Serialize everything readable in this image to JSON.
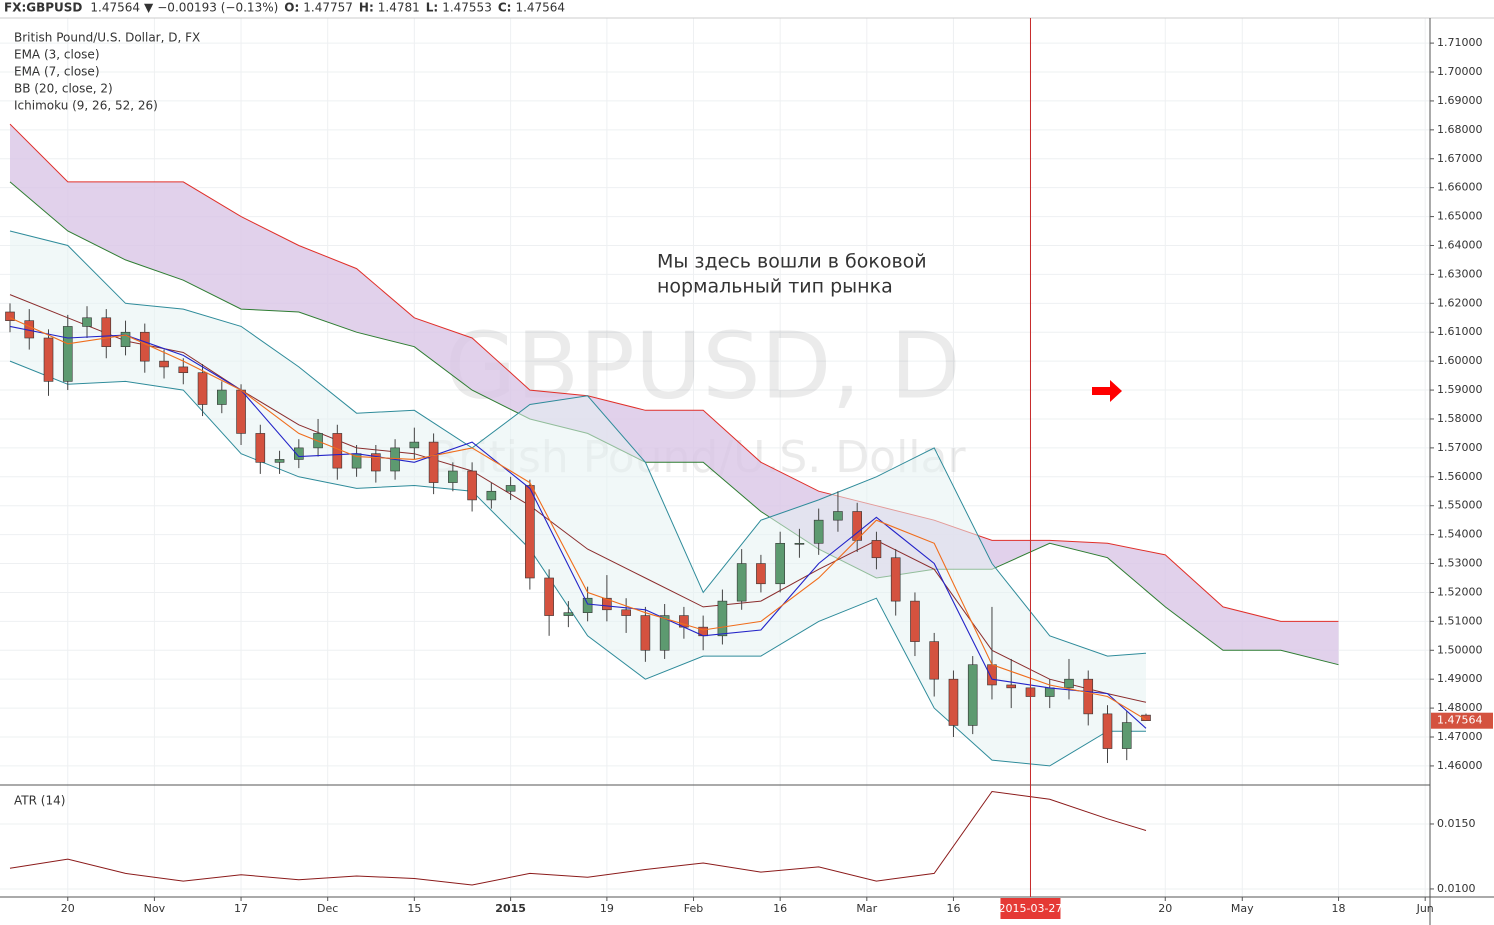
{
  "chart_data": [
    {
      "type": "candlestick",
      "symbol": "FX:GBPUSD",
      "change_arrow": "▼",
      "change": "−0.00193 (−0.13%)",
      "ohlc_labels": [
        "O:",
        "H:",
        "L:",
        "C:"
      ],
      "title": "British Pound/U.S. Dollar, D, FX",
      "watermark": {
        "title": "GBPUSD, D",
        "subtitle": "British Pound/U.S. Dollar"
      },
      "annotation": [
        "Мы здесь вошли в боковой",
        "нормальный тип рынка"
      ],
      "up_color": "#5d9a70",
      "down_color": "#d4523f",
      "x": [
        0,
        2,
        4,
        6,
        8,
        10,
        12,
        14,
        16,
        18,
        20,
        22,
        24,
        26,
        28,
        30,
        32,
        34,
        36,
        38,
        40,
        42,
        44,
        46,
        48,
        50,
        52,
        54,
        56,
        58,
        60,
        62,
        64,
        66,
        68,
        70,
        72,
        74,
        76,
        78,
        80,
        82,
        84,
        86,
        88,
        90,
        92,
        94,
        96,
        98,
        100,
        102,
        104,
        106,
        108,
        110,
        112,
        114,
        116,
        118
      ],
      "open": [
        1.617,
        1.614,
        1.608,
        1.593,
        1.612,
        1.615,
        1.605,
        1.61,
        1.6,
        1.598,
        1.596,
        1.585,
        1.59,
        1.575,
        1.565,
        1.566,
        1.57,
        1.575,
        1.563,
        1.568,
        1.562,
        1.57,
        1.572,
        1.558,
        1.562,
        1.552,
        1.555,
        1.557,
        1.525,
        1.512,
        1.513,
        1.518,
        1.514,
        1.512,
        1.5,
        1.512,
        1.508,
        1.505,
        1.517,
        1.53,
        1.523,
        1.537,
        1.537,
        1.545,
        1.548,
        1.538,
        1.532,
        1.517,
        1.503,
        1.49,
        1.474,
        1.495,
        1.488,
        1.487,
        1.484,
        1.487,
        1.49,
        1.478,
        1.466,
        1.47757
      ],
      "high": [
        1.62,
        1.618,
        1.611,
        1.616,
        1.619,
        1.618,
        1.614,
        1.613,
        1.604,
        1.601,
        1.599,
        1.593,
        1.592,
        1.578,
        1.569,
        1.573,
        1.58,
        1.578,
        1.571,
        1.571,
        1.573,
        1.577,
        1.575,
        1.565,
        1.565,
        1.558,
        1.56,
        1.559,
        1.528,
        1.517,
        1.522,
        1.526,
        1.518,
        1.515,
        1.516,
        1.515,
        1.512,
        1.521,
        1.535,
        1.533,
        1.541,
        1.542,
        1.549,
        1.555,
        1.551,
        1.541,
        1.535,
        1.52,
        1.506,
        1.493,
        1.498,
        1.515,
        1.497,
        1.491,
        1.49,
        1.497,
        1.493,
        1.481,
        1.479,
        1.4781
      ],
      "low": [
        1.61,
        1.604,
        1.588,
        1.59,
        1.608,
        1.601,
        1.602,
        1.596,
        1.594,
        1.592,
        1.581,
        1.582,
        1.571,
        1.561,
        1.561,
        1.563,
        1.567,
        1.559,
        1.56,
        1.558,
        1.559,
        1.566,
        1.554,
        1.555,
        1.548,
        1.549,
        1.552,
        1.521,
        1.505,
        1.508,
        1.51,
        1.51,
        1.506,
        1.496,
        1.497,
        1.504,
        1.5,
        1.502,
        1.514,
        1.52,
        1.52,
        1.532,
        1.533,
        1.541,
        1.534,
        1.528,
        1.512,
        1.498,
        1.484,
        1.47,
        1.471,
        1.483,
        1.48,
        1.479,
        1.48,
        1.483,
        1.474,
        1.461,
        1.462,
        1.47553
      ],
      "close": [
        1.614,
        1.608,
        1.593,
        1.612,
        1.615,
        1.605,
        1.61,
        1.6,
        1.598,
        1.596,
        1.585,
        1.59,
        1.575,
        1.565,
        1.566,
        1.57,
        1.575,
        1.563,
        1.568,
        1.562,
        1.57,
        1.572,
        1.558,
        1.562,
        1.552,
        1.555,
        1.557,
        1.525,
        1.512,
        1.513,
        1.518,
        1.514,
        1.512,
        1.5,
        1.512,
        1.508,
        1.505,
        1.517,
        1.53,
        1.523,
        1.537,
        1.537,
        1.545,
        1.548,
        1.538,
        1.532,
        1.517,
        1.503,
        1.49,
        1.474,
        1.495,
        1.488,
        1.487,
        1.484,
        1.487,
        1.49,
        1.478,
        1.466,
        1.475,
        1.47564
      ],
      "series": [
        {
          "name": "EMA (3, close)",
          "color": "#2323c8",
          "x": [
            0,
            6,
            12,
            18,
            24,
            30,
            36,
            42,
            48,
            54,
            60,
            66,
            72,
            78,
            84,
            90,
            96,
            102,
            108,
            114,
            118
          ],
          "values": [
            1.612,
            1.608,
            1.609,
            1.602,
            1.59,
            1.567,
            1.568,
            1.565,
            1.572,
            1.556,
            1.516,
            1.514,
            1.505,
            1.507,
            1.53,
            1.546,
            1.53,
            1.49,
            1.487,
            1.485,
            1.473
          ]
        },
        {
          "name": "EMA (7, close)",
          "color": "#f06d1c",
          "x": [
            0,
            6,
            12,
            18,
            24,
            30,
            36,
            42,
            48,
            54,
            60,
            66,
            72,
            78,
            84,
            90,
            96,
            102,
            108,
            114,
            118
          ],
          "values": [
            1.615,
            1.606,
            1.609,
            1.6,
            1.59,
            1.575,
            1.567,
            1.566,
            1.57,
            1.558,
            1.52,
            1.513,
            1.507,
            1.51,
            1.525,
            1.545,
            1.537,
            1.495,
            1.488,
            1.484,
            1.476
          ]
        },
        {
          "name": "BB (20, close, 2)",
          "color": "#2e8b9a",
          "middle_color": "#8b2d2d",
          "fill": "#e6f3f3",
          "x": [
            0,
            6,
            12,
            18,
            24,
            30,
            36,
            42,
            48,
            54,
            60,
            66,
            72,
            78,
            84,
            90,
            96,
            102,
            108,
            114,
            118
          ],
          "upper": [
            1.645,
            1.64,
            1.62,
            1.618,
            1.612,
            1.598,
            1.582,
            1.583,
            1.57,
            1.585,
            1.588,
            1.565,
            1.52,
            1.545,
            1.552,
            1.56,
            1.57,
            1.53,
            1.505,
            1.498,
            1.499
          ],
          "middle": [
            1.623,
            1.615,
            1.607,
            1.603,
            1.59,
            1.578,
            1.57,
            1.568,
            1.562,
            1.55,
            1.535,
            1.525,
            1.515,
            1.517,
            1.528,
            1.538,
            1.528,
            1.5,
            1.49,
            1.485,
            1.482
          ],
          "lower": [
            1.6,
            1.592,
            1.593,
            1.59,
            1.568,
            1.56,
            1.556,
            1.557,
            1.555,
            1.535,
            1.505,
            1.49,
            1.498,
            1.498,
            1.51,
            1.518,
            1.48,
            1.462,
            1.46,
            1.472,
            1.472
          ]
        },
        {
          "name": "Ichimoku (9, 26, 52, 26)",
          "color": "#d9c5e6",
          "span_a_color": "#e0302a",
          "span_b_color": "#2e7d32",
          "x": [
            0,
            6,
            12,
            18,
            24,
            30,
            36,
            42,
            48,
            54,
            60,
            66,
            72,
            78,
            84,
            90,
            96,
            102,
            108,
            114,
            120,
            126,
            132,
            138
          ],
          "span_a": [
            1.682,
            1.662,
            1.662,
            1.662,
            1.65,
            1.64,
            1.632,
            1.615,
            1.608,
            1.59,
            1.588,
            1.583,
            1.583,
            1.565,
            1.555,
            1.55,
            1.545,
            1.538,
            1.538,
            1.537,
            1.533,
            1.515,
            1.51,
            1.51
          ],
          "span_b": [
            1.662,
            1.645,
            1.635,
            1.628,
            1.618,
            1.617,
            1.61,
            1.605,
            1.59,
            1.58,
            1.575,
            1.565,
            1.565,
            1.548,
            1.535,
            1.525,
            1.528,
            1.528,
            1.537,
            1.532,
            1.515,
            1.5,
            1.5,
            1.495
          ]
        }
      ],
      "xlim": [
        0,
        147.5
      ],
      "xticks": [
        {
          "value": 6,
          "label": "20"
        },
        {
          "value": 15,
          "label": "Nov"
        },
        {
          "value": 24,
          "label": "17"
        },
        {
          "value": 33,
          "label": "Dec"
        },
        {
          "value": 42,
          "label": "15"
        },
        {
          "value": 52,
          "label": "2015"
        },
        {
          "value": 62,
          "label": "19"
        },
        {
          "value": 71,
          "label": "Feb"
        },
        {
          "value": 80,
          "label": "16"
        },
        {
          "value": 89,
          "label": "Mar"
        },
        {
          "value": 98,
          "label": "16"
        },
        {
          "value": 120,
          "label": "20"
        },
        {
          "value": 128,
          "label": "May"
        },
        {
          "value": 138,
          "label": "18"
        },
        {
          "value": 147,
          "label": "Jun"
        }
      ],
      "crosshair": {
        "value": 106,
        "label": "2015-03-27"
      },
      "ylim": [
        1.4534,
        1.7173
      ],
      "yticks": [
        {
          "value": 1.46,
          "label": "1.46000"
        },
        {
          "value": 1.47,
          "label": "1.47000"
        },
        {
          "value": 1.48,
          "label": "1.48000"
        },
        {
          "value": 1.49,
          "label": "1.49000"
        },
        {
          "value": 1.5,
          "label": "1.50000"
        },
        {
          "value": 1.51,
          "label": "1.51000"
        },
        {
          "value": 1.52,
          "label": "1.52000"
        },
        {
          "value": 1.53,
          "label": "1.53000"
        },
        {
          "value": 1.54,
          "label": "1.54000"
        },
        {
          "value": 1.55,
          "label": "1.55000"
        },
        {
          "value": 1.56,
          "label": "1.56000"
        },
        {
          "value": 1.57,
          "label": "1.57000"
        },
        {
          "value": 1.58,
          "label": "1.58000"
        },
        {
          "value": 1.59,
          "label": "1.59000"
        },
        {
          "value": 1.6,
          "label": "1.60000"
        },
        {
          "value": 1.61,
          "label": "1.61000"
        },
        {
          "value": 1.62,
          "label": "1.62000"
        },
        {
          "value": 1.63,
          "label": "1.63000"
        },
        {
          "value": 1.64,
          "label": "1.64000"
        },
        {
          "value": 1.65,
          "label": "1.65000"
        },
        {
          "value": 1.66,
          "label": "1.66000"
        },
        {
          "value": 1.67,
          "label": "1.67000"
        },
        {
          "value": 1.68,
          "label": "1.68000"
        },
        {
          "value": 1.69,
          "label": "1.69000"
        },
        {
          "value": 1.7,
          "label": "1.70000"
        },
        {
          "value": 1.71,
          "label": "1.71000"
        }
      ],
      "grid": true
    },
    {
      "type": "line",
      "title": "ATR (14)",
      "color": "#8b1a1a",
      "x": [
        0,
        6,
        12,
        18,
        24,
        30,
        36,
        42,
        48,
        54,
        60,
        66,
        72,
        78,
        84,
        90,
        96,
        102,
        108,
        114,
        118
      ],
      "values": [
        0.0116,
        0.0123,
        0.0112,
        0.0106,
        0.0111,
        0.0107,
        0.011,
        0.0108,
        0.0103,
        0.0112,
        0.0109,
        0.0115,
        0.012,
        0.0113,
        0.0117,
        0.0106,
        0.0112,
        0.0175,
        0.0169,
        0.0154,
        0.0145
      ],
      "ylim": [
        0.00938,
        0.018
      ],
      "yticks": [
        {
          "value": 0.01,
          "label": "0.0100"
        },
        {
          "value": 0.015,
          "label": "0.0150"
        }
      ]
    }
  ]
}
